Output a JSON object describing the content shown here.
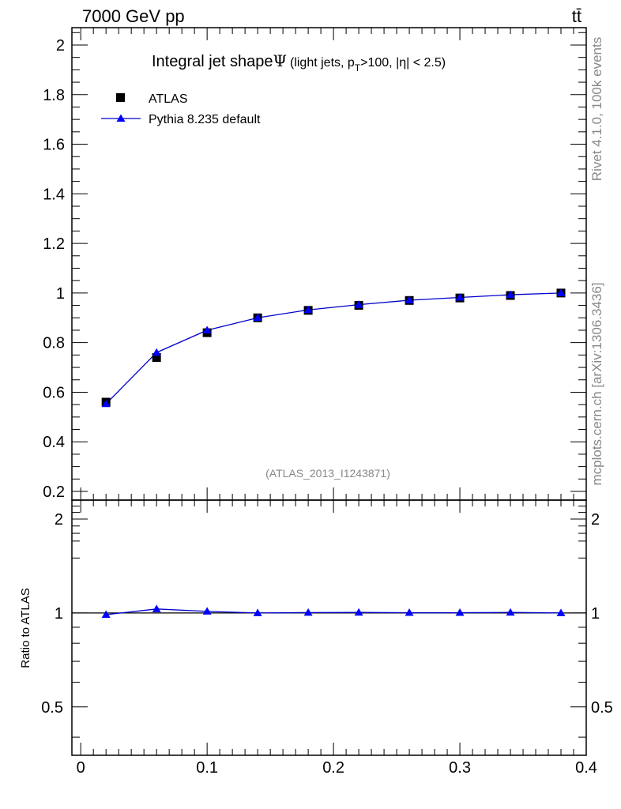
{
  "header": {
    "energy_label": "7000 GeV pp",
    "process_label": "tt̄"
  },
  "side_labels": {
    "rivet": "Rivet 4.1.0,  100k events",
    "mcplots": "mcplots.cern.ch [arXiv:1306.3436]"
  },
  "chart_data": [
    {
      "type": "scatter",
      "title_main": "Integral jet shape",
      "title_symbol": "Ψ",
      "title_sub": "(light jets, p",
      "title_sub_index": "T",
      "title_sub_rest": ">100, |η| < 2.5)",
      "analysis_label": "(ATLAS_2013_I1243871)",
      "xlim": [
        -0.007,
        0.4
      ],
      "ylim": [
        0.165,
        2.07
      ],
      "yticks": [
        0.2,
        0.4,
        0.6,
        0.8,
        1,
        1.2,
        1.4,
        1.6,
        1.8,
        2
      ],
      "ytick_labels": [
        "0.2",
        "0.4",
        "0.6",
        "0.8",
        "1",
        "1.2",
        "1.4",
        "1.6",
        "1.8",
        "2"
      ],
      "legend_position": "top-left",
      "series": [
        {
          "name": "ATLAS",
          "marker": "square",
          "color": "#000000",
          "x": [
            0.02,
            0.06,
            0.1,
            0.14,
            0.18,
            0.22,
            0.26,
            0.3,
            0.34,
            0.38
          ],
          "y": [
            0.56,
            0.74,
            0.84,
            0.9,
            0.93,
            0.95,
            0.97,
            0.98,
            0.99,
            1.0
          ]
        },
        {
          "name": "Pythia 8.235 default",
          "marker": "triangle",
          "color": "#0000ff",
          "line_color": "#0000cc",
          "x": [
            0.02,
            0.06,
            0.1,
            0.14,
            0.18,
            0.22,
            0.26,
            0.3,
            0.34,
            0.38
          ],
          "y": [
            0.553,
            0.76,
            0.85,
            0.9,
            0.932,
            0.953,
            0.971,
            0.982,
            0.993,
            1.0
          ]
        }
      ]
    },
    {
      "type": "line",
      "ylabel": "Ratio to ATLAS",
      "xlim": [
        -0.007,
        0.4
      ],
      "ylim": [
        0.35,
        2.3
      ],
      "yticks": [
        0.5,
        1,
        2
      ],
      "ytick_labels": [
        "0.5",
        "1",
        "2"
      ],
      "xticks": [
        0,
        0.1,
        0.2,
        0.3,
        0.4
      ],
      "xtick_labels": [
        "0",
        "0.1",
        "0.2",
        "0.3",
        "0.4"
      ],
      "reference": 1.0,
      "series": [
        {
          "name": "Pythia 8.235 default",
          "color": "#0000ff",
          "line_color": "#0000cc",
          "x": [
            0.02,
            0.06,
            0.1,
            0.14,
            0.18,
            0.22,
            0.26,
            0.3,
            0.34,
            0.38
          ],
          "y": [
            0.988,
            1.03,
            1.012,
            1.0,
            1.003,
            1.004,
            1.002,
            1.002,
            1.004,
            1.0
          ]
        }
      ]
    }
  ]
}
